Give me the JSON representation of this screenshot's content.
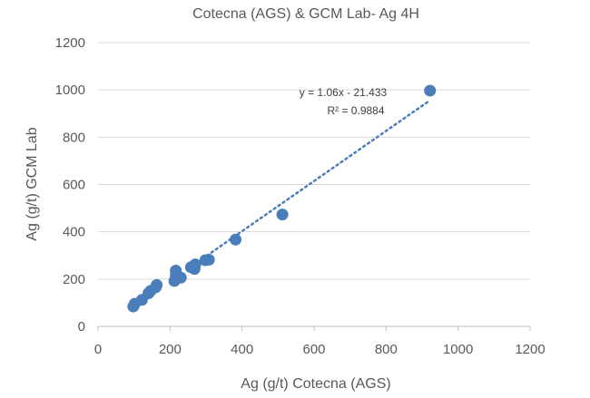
{
  "chart_data": {
    "type": "scatter",
    "title": "Cotecna (AGS) & GCM Lab- Ag 4H",
    "xlabel": "Ag (g/t) Cotecna (AGS)",
    "ylabel": "Ag (g/t) GCM Lab",
    "xlim": [
      0,
      1200
    ],
    "ylim": [
      0,
      1200
    ],
    "xticks": [
      "0",
      "200",
      "400",
      "600",
      "800",
      "1000",
      "1200"
    ],
    "yticks": [
      "0",
      "200",
      "400",
      "600",
      "800",
      "1000",
      "1200"
    ],
    "grid": "horizontal",
    "legend": "none",
    "points": [
      {
        "x": 98,
        "y": 84
      },
      {
        "x": 102,
        "y": 96
      },
      {
        "x": 122,
        "y": 112
      },
      {
        "x": 140,
        "y": 140
      },
      {
        "x": 146,
        "y": 150
      },
      {
        "x": 160,
        "y": 165
      },
      {
        "x": 163,
        "y": 175
      },
      {
        "x": 212,
        "y": 192
      },
      {
        "x": 216,
        "y": 218
      },
      {
        "x": 216,
        "y": 236
      },
      {
        "x": 230,
        "y": 206
      },
      {
        "x": 258,
        "y": 250
      },
      {
        "x": 268,
        "y": 243
      },
      {
        "x": 270,
        "y": 262
      },
      {
        "x": 298,
        "y": 280
      },
      {
        "x": 308,
        "y": 282
      },
      {
        "x": 382,
        "y": 367
      },
      {
        "x": 512,
        "y": 473
      },
      {
        "x": 922,
        "y": 997
      }
    ],
    "trendline": {
      "type": "linear",
      "slope": 1.06,
      "intercept": -21.433,
      "from_x": 290,
      "to_x": 922,
      "equation": "y = 1.06x - 21.433",
      "r2": "R² = 0.9884"
    },
    "colors": {
      "marker": "#4a7ebb",
      "trendline": "#4a7ebb",
      "axis": "#bfbfbf",
      "grid": "#d9d9d9"
    }
  }
}
